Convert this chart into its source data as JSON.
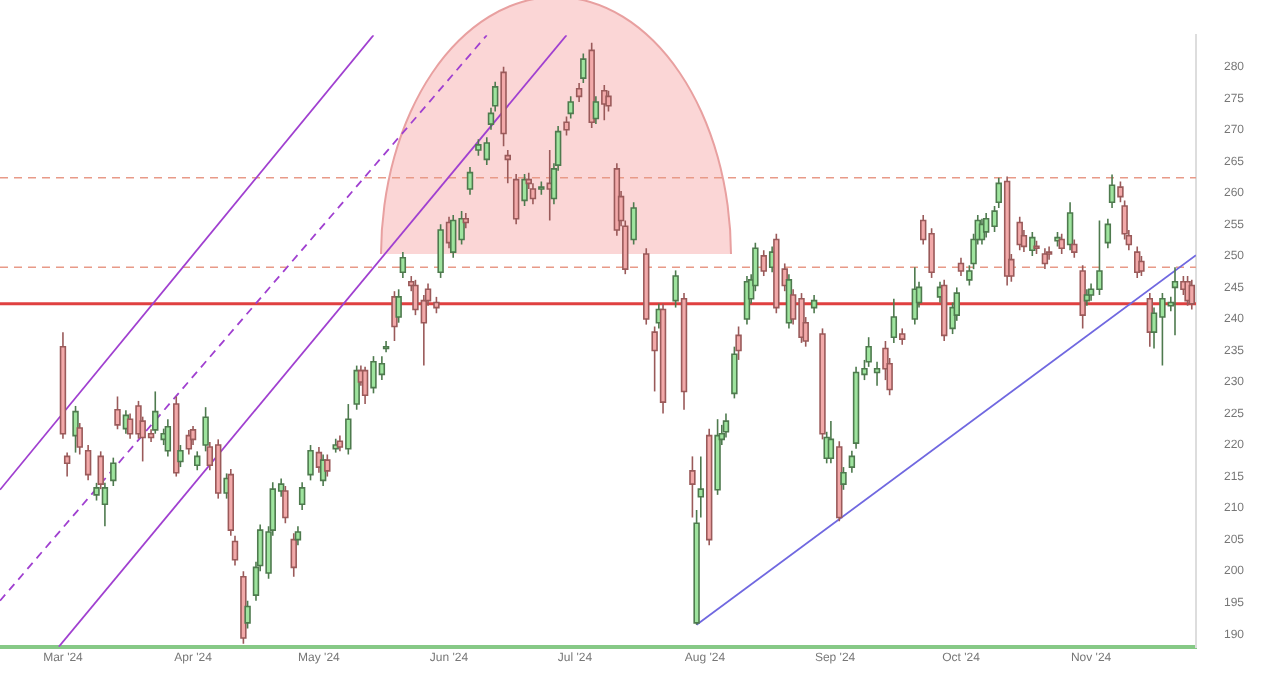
{
  "chart_data": {
    "type": "candlestick",
    "x": [
      "2024-03-01",
      "2024-03-02",
      "2024-03-04",
      "2024-03-05",
      "2024-03-07",
      "2024-03-09",
      "2024-03-10",
      "2024-03-11",
      "2024-03-13",
      "2024-03-14",
      "2024-03-16",
      "2024-03-17",
      "2024-03-19",
      "2024-03-20",
      "2024-03-22",
      "2024-03-23",
      "2024-03-25",
      "2024-03-26",
      "2024-03-28",
      "2024-03-29",
      "2024-03-31",
      "2024-04-01",
      "2024-04-02",
      "2024-04-04",
      "2024-04-05",
      "2024-04-07",
      "2024-04-09",
      "2024-04-10",
      "2024-04-11",
      "2024-04-13",
      "2024-04-14",
      "2024-04-16",
      "2024-04-17",
      "2024-04-19",
      "2024-04-20",
      "2024-04-22",
      "2024-04-23",
      "2024-04-25",
      "2024-04-26",
      "2024-04-27",
      "2024-04-29",
      "2024-05-01",
      "2024-05-02",
      "2024-05-03",
      "2024-05-05",
      "2024-05-06",
      "2024-05-08",
      "2024-05-10",
      "2024-05-11",
      "2024-05-12",
      "2024-05-14",
      "2024-05-16",
      "2024-05-17",
      "2024-05-19",
      "2024-05-20",
      "2024-05-21",
      "2024-05-23",
      "2024-05-24",
      "2024-05-26",
      "2024-05-27",
      "2024-05-29",
      "2024-05-30",
      "2024-06-01",
      "2024-06-02",
      "2024-06-04",
      "2024-06-05",
      "2024-06-06",
      "2024-06-08",
      "2024-06-10",
      "2024-06-11",
      "2024-06-12",
      "2024-06-14",
      "2024-06-15",
      "2024-06-17",
      "2024-06-19",
      "2024-06-20",
      "2024-06-21",
      "2024-06-23",
      "2024-06-25",
      "2024-06-26",
      "2024-06-27",
      "2024-06-29",
      "2024-06-30",
      "2024-07-02",
      "2024-07-03",
      "2024-07-05",
      "2024-07-06",
      "2024-07-08",
      "2024-07-09",
      "2024-07-11",
      "2024-07-12",
      "2024-07-13",
      "2024-07-15",
      "2024-07-18",
      "2024-07-20",
      "2024-07-21",
      "2024-07-22",
      "2024-07-25",
      "2024-07-27",
      "2024-07-29",
      "2024-07-30",
      "2024-07-31",
      "2024-08-02",
      "2024-08-04",
      "2024-08-05",
      "2024-08-06",
      "2024-08-08",
      "2024-08-09",
      "2024-08-11",
      "2024-08-12",
      "2024-08-13",
      "2024-08-15",
      "2024-08-17",
      "2024-08-18",
      "2024-08-20",
      "2024-08-21",
      "2024-08-22",
      "2024-08-24",
      "2024-08-25",
      "2024-08-27",
      "2024-08-29",
      "2024-08-30",
      "2024-08-31",
      "2024-09-02",
      "2024-09-03",
      "2024-09-05",
      "2024-09-06",
      "2024-09-08",
      "2024-09-09",
      "2024-09-11",
      "2024-09-13",
      "2024-09-14",
      "2024-09-15",
      "2024-09-17",
      "2024-09-20",
      "2024-09-21",
      "2024-09-22",
      "2024-09-24",
      "2024-09-26",
      "2024-09-27",
      "2024-09-29",
      "2024-09-30",
      "2024-10-01",
      "2024-10-03",
      "2024-10-04",
      "2024-10-05",
      "2024-10-06",
      "2024-10-07",
      "2024-10-09",
      "2024-10-10",
      "2024-10-12",
      "2024-10-13",
      "2024-10-15",
      "2024-10-16",
      "2024-10-18",
      "2024-10-19",
      "2024-10-21",
      "2024-10-22",
      "2024-10-24",
      "2024-10-25",
      "2024-10-27",
      "2024-10-28",
      "2024-10-30",
      "2024-10-31",
      "2024-11-01",
      "2024-11-03",
      "2024-11-05",
      "2024-11-06",
      "2024-11-08",
      "2024-11-09",
      "2024-11-10",
      "2024-11-12",
      "2024-11-13",
      "2024-11-15",
      "2024-11-16",
      "2024-11-18",
      "2024-11-20",
      "2024-11-21",
      "2024-11-23",
      "2024-11-24",
      "2024-11-25"
    ],
    "ohlc": [
      [
        235.6,
        237.9,
        221.0,
        221.8
      ],
      [
        218.2,
        218.8,
        215.0,
        217.1
      ],
      [
        221.5,
        226.2,
        218.8,
        225.3
      ],
      [
        222.7,
        223.5,
        218.5,
        219.7
      ],
      [
        219.1,
        220.0,
        214.4,
        215.3
      ],
      [
        212.1,
        214.0,
        211.2,
        213.2
      ],
      [
        218.2,
        219.0,
        213.0,
        213.8
      ],
      [
        210.6,
        214.0,
        207.1,
        213.2
      ],
      [
        214.4,
        218.0,
        213.5,
        217.1
      ],
      [
        225.6,
        227.7,
        222.5,
        223.2
      ],
      [
        222.6,
        225.5,
        221.8,
        224.7
      ],
      [
        224.1,
        225.0,
        221.0,
        221.8
      ],
      [
        226.2,
        227.0,
        221.0,
        221.8
      ],
      [
        223.8,
        224.5,
        217.4,
        221.2
      ],
      [
        221.8,
        222.5,
        220.5,
        221.2
      ],
      [
        222.4,
        228.5,
        221.8,
        225.3
      ],
      [
        220.9,
        222.6,
        220.0,
        221.8
      ],
      [
        219.1,
        224.1,
        218.2,
        222.9
      ],
      [
        226.5,
        227.7,
        215.0,
        215.6
      ],
      [
        217.4,
        220.0,
        216.5,
        219.1
      ],
      [
        221.5,
        222.4,
        218.5,
        219.4
      ],
      [
        222.4,
        223.0,
        220.0,
        220.9
      ],
      [
        216.8,
        219.0,
        216.0,
        218.2
      ],
      [
        220.0,
        226.0,
        219.0,
        224.4
      ],
      [
        219.7,
        220.5,
        216.0,
        216.8
      ],
      [
        220.0,
        220.9,
        211.5,
        212.4
      ],
      [
        212.4,
        215.5,
        211.5,
        214.7
      ],
      [
        215.3,
        216.2,
        205.6,
        206.5
      ],
      [
        204.7,
        205.6,
        200.9,
        201.8
      ],
      [
        199.1,
        200.0,
        188.5,
        189.4
      ],
      [
        191.8,
        195.3,
        190.9,
        194.4
      ],
      [
        196.2,
        201.5,
        195.3,
        200.6
      ],
      [
        200.9,
        207.4,
        200.0,
        206.5
      ],
      [
        199.7,
        207.1,
        198.8,
        206.2
      ],
      [
        206.5,
        214.1,
        205.6,
        213.0
      ],
      [
        212.7,
        214.7,
        211.8,
        213.8
      ],
      [
        212.7,
        213.5,
        207.6,
        208.5
      ],
      [
        205.0,
        206.0,
        199.1,
        200.6
      ],
      [
        205.0,
        207.1,
        204.1,
        206.2
      ],
      [
        210.6,
        214.1,
        209.7,
        213.2
      ],
      [
        215.3,
        220.0,
        214.4,
        219.1
      ],
      [
        218.8,
        219.7,
        215.6,
        216.5
      ],
      [
        214.4,
        218.5,
        213.5,
        217.6
      ],
      [
        217.6,
        218.5,
        215.0,
        215.9
      ],
      [
        219.4,
        221.0,
        218.8,
        220.0
      ],
      [
        220.6,
        221.5,
        219.0,
        219.7
      ],
      [
        219.4,
        226.5,
        218.5,
        224.1
      ],
      [
        226.5,
        232.6,
        225.6,
        231.8
      ],
      [
        231.8,
        232.6,
        229.4,
        230.0
      ],
      [
        231.8,
        232.4,
        226.5,
        227.9
      ],
      [
        229.1,
        234.1,
        228.2,
        233.2
      ],
      [
        231.2,
        234.1,
        230.3,
        232.9
      ],
      [
        235.3,
        236.5,
        234.7,
        235.6
      ],
      [
        243.5,
        244.4,
        236.5,
        238.8
      ],
      [
        240.3,
        244.7,
        239.4,
        243.5
      ],
      [
        247.4,
        250.6,
        246.5,
        249.7
      ],
      [
        245.9,
        246.8,
        244.4,
        245.3
      ],
      [
        245.3,
        246.2,
        240.6,
        241.5
      ],
      [
        242.9,
        243.8,
        232.6,
        239.4
      ],
      [
        244.7,
        245.6,
        242.1,
        242.9
      ],
      [
        242.6,
        243.5,
        240.9,
        241.8
      ],
      [
        247.4,
        255.0,
        246.5,
        254.1
      ],
      [
        255.3,
        256.2,
        251.2,
        252.1
      ],
      [
        250.6,
        256.5,
        249.7,
        255.6
      ],
      [
        252.6,
        257.1,
        251.8,
        255.9
      ],
      [
        255.9,
        256.8,
        254.4,
        255.3
      ],
      [
        260.6,
        264.1,
        259.7,
        263.2
      ],
      [
        266.8,
        268.5,
        265.9,
        267.6
      ],
      [
        265.3,
        268.8,
        264.4,
        267.9
      ],
      [
        270.9,
        273.5,
        270.0,
        272.6
      ],
      [
        273.8,
        277.6,
        272.9,
        276.8
      ],
      [
        279.1,
        280.0,
        267.4,
        269.4
      ],
      [
        265.9,
        266.8,
        261.5,
        265.3
      ],
      [
        262.1,
        263.0,
        255.0,
        255.9
      ],
      [
        258.8,
        263.0,
        257.9,
        262.1
      ],
      [
        262.1,
        263.2,
        260.6,
        261.5
      ],
      [
        260.6,
        261.5,
        258.2,
        259.1
      ],
      [
        260.6,
        261.8,
        259.7,
        260.9
      ],
      [
        261.5,
        266.8,
        255.6,
        260.6
      ],
      [
        259.1,
        264.7,
        258.2,
        263.8
      ],
      [
        264.4,
        270.6,
        263.5,
        269.7
      ],
      [
        271.2,
        272.1,
        269.1,
        270.0
      ],
      [
        272.6,
        275.3,
        271.8,
        274.4
      ],
      [
        276.5,
        277.4,
        274.4,
        275.3
      ],
      [
        278.2,
        282.1,
        277.4,
        281.2
      ],
      [
        282.6,
        283.8,
        270.3,
        271.2
      ],
      [
        271.8,
        275.3,
        270.9,
        274.4
      ],
      [
        276.2,
        277.1,
        271.5,
        274.1
      ],
      [
        275.3,
        276.2,
        272.9,
        273.8
      ],
      [
        263.8,
        264.7,
        253.2,
        254.1
      ],
      [
        259.4,
        260.3,
        254.7,
        255.6
      ],
      [
        254.7,
        255.6,
        247.1,
        247.9
      ],
      [
        252.6,
        258.5,
        251.8,
        257.6
      ],
      [
        250.3,
        251.2,
        239.1,
        240.0
      ],
      [
        237.9,
        238.8,
        228.5,
        235.0
      ],
      [
        239.4,
        242.4,
        238.5,
        241.5
      ],
      [
        241.5,
        242.4,
        225.0,
        226.8
      ],
      [
        242.9,
        247.7,
        241.8,
        246.8
      ],
      [
        243.2,
        244.1,
        225.6,
        228.5
      ],
      [
        215.9,
        218.2,
        208.5,
        213.8
      ],
      [
        191.8,
        209.7,
        191.5,
        207.6
      ],
      [
        211.8,
        218.2,
        208.5,
        213.0
      ],
      [
        221.5,
        222.6,
        204.1,
        205.0
      ],
      [
        212.9,
        224.1,
        212.1,
        221.5
      ],
      [
        220.9,
        223.2,
        220.0,
        221.8
      ],
      [
        222.1,
        225.0,
        221.2,
        223.8
      ],
      [
        228.2,
        235.6,
        227.4,
        234.4
      ],
      [
        237.4,
        238.8,
        233.5,
        235.0
      ],
      [
        240.0,
        246.8,
        239.1,
        245.9
      ],
      [
        243.2,
        247.1,
        242.4,
        246.2
      ],
      [
        245.3,
        252.1,
        244.4,
        251.2
      ],
      [
        250.0,
        250.9,
        246.8,
        247.6
      ],
      [
        248.2,
        251.5,
        247.4,
        250.6
      ],
      [
        252.6,
        253.5,
        240.9,
        241.8
      ],
      [
        247.9,
        248.8,
        244.4,
        245.3
      ],
      [
        239.4,
        247.1,
        238.5,
        246.2
      ],
      [
        243.8,
        244.7,
        239.1,
        240.0
      ],
      [
        243.2,
        244.1,
        236.2,
        237.1
      ],
      [
        239.4,
        240.3,
        235.6,
        236.5
      ],
      [
        241.8,
        243.8,
        240.9,
        242.9
      ],
      [
        237.6,
        238.5,
        220.9,
        221.8
      ],
      [
        217.9,
        222.1,
        217.1,
        221.2
      ],
      [
        217.9,
        223.8,
        217.1,
        220.9
      ],
      [
        219.7,
        220.6,
        207.9,
        208.5
      ],
      [
        213.8,
        216.5,
        212.9,
        215.6
      ],
      [
        216.5,
        219.1,
        215.6,
        218.2
      ],
      [
        220.3,
        232.4,
        219.4,
        231.5
      ],
      [
        231.2,
        233.5,
        230.3,
        232.1
      ],
      [
        233.2,
        237.1,
        232.4,
        235.6
      ],
      [
        231.5,
        233.2,
        229.4,
        232.1
      ],
      [
        235.3,
        236.5,
        230.3,
        232.1
      ],
      [
        232.9,
        233.8,
        227.9,
        228.8
      ],
      [
        237.1,
        243.2,
        236.2,
        240.3
      ],
      [
        237.6,
        238.5,
        235.9,
        236.8
      ],
      [
        240.0,
        248.2,
        239.1,
        244.7
      ],
      [
        242.6,
        245.9,
        241.8,
        245.0
      ],
      [
        255.6,
        256.5,
        251.8,
        252.6
      ],
      [
        253.5,
        254.4,
        246.5,
        247.4
      ],
      [
        243.5,
        245.9,
        242.6,
        245.0
      ],
      [
        245.3,
        246.2,
        236.5,
        237.4
      ],
      [
        238.5,
        242.6,
        237.6,
        241.8
      ],
      [
        240.6,
        245.0,
        239.7,
        244.1
      ],
      [
        248.8,
        249.7,
        246.8,
        247.6
      ],
      [
        246.2,
        248.5,
        245.3,
        247.6
      ],
      [
        248.8,
        253.5,
        247.9,
        252.6
      ],
      [
        252.6,
        256.5,
        251.8,
        255.6
      ],
      [
        252.6,
        255.9,
        251.8,
        255.0
      ],
      [
        253.8,
        256.8,
        252.9,
        255.9
      ],
      [
        254.7,
        257.9,
        253.8,
        257.1
      ],
      [
        258.5,
        262.4,
        257.6,
        261.5
      ],
      [
        261.8,
        262.6,
        245.3,
        246.8
      ],
      [
        249.4,
        250.3,
        245.9,
        246.8
      ],
      [
        255.3,
        256.2,
        250.9,
        251.8
      ],
      [
        253.2,
        254.1,
        250.6,
        251.5
      ],
      [
        250.9,
        253.8,
        250.0,
        252.9
      ],
      [
        251.5,
        252.4,
        250.3,
        251.2
      ],
      [
        250.3,
        251.2,
        247.9,
        248.8
      ],
      [
        250.6,
        251.5,
        249.4,
        250.3
      ],
      [
        252.4,
        253.8,
        251.5,
        252.9
      ],
      [
        252.6,
        253.5,
        250.3,
        251.2
      ],
      [
        251.8,
        258.5,
        250.9,
        256.8
      ],
      [
        251.8,
        252.6,
        249.7,
        250.6
      ],
      [
        247.6,
        248.5,
        238.5,
        240.6
      ],
      [
        242.9,
        244.7,
        242.1,
        243.8
      ],
      [
        243.8,
        245.6,
        242.9,
        244.7
      ],
      [
        244.7,
        255.6,
        243.8,
        247.6
      ],
      [
        252.1,
        255.9,
        251.2,
        255.0
      ],
      [
        258.5,
        262.9,
        257.6,
        261.2
      ],
      [
        260.9,
        261.8,
        258.5,
        259.4
      ],
      [
        257.9,
        258.8,
        252.6,
        253.5
      ],
      [
        253.2,
        254.1,
        250.9,
        251.8
      ],
      [
        250.6,
        251.5,
        246.5,
        247.4
      ],
      [
        249.1,
        250.0,
        246.8,
        247.6
      ],
      [
        243.2,
        244.1,
        235.6,
        237.9
      ],
      [
        237.9,
        241.8,
        235.3,
        240.9
      ],
      [
        240.3,
        244.1,
        232.6,
        243.2
      ],
      [
        242.1,
        243.5,
        241.2,
        242.6
      ],
      [
        245.0,
        248.2,
        237.4,
        245.9
      ],
      [
        245.9,
        246.8,
        243.8,
        244.7
      ],
      [
        245.9,
        246.8,
        242.1,
        242.9
      ],
      [
        245.3,
        246.2,
        241.5,
        242.4
      ]
    ],
    "series": [
      {
        "type": "line",
        "color": "#a040d0",
        "line_style": "solid",
        "x": [
          "2024-02-15",
          "2024-05-14"
        ],
        "values": [
          212.9,
          285
        ]
      },
      {
        "type": "line",
        "color": "#a040d0",
        "line_style": "dashed",
        "x": [
          "2024-02-15",
          "2024-06-10"
        ],
        "values": [
          195.3,
          285
        ]
      },
      {
        "type": "line",
        "color": "#a040d0",
        "line_style": "solid",
        "x": [
          "2024-02-29",
          "2024-06-29"
        ],
        "values": [
          188.0,
          285
        ]
      },
      {
        "type": "line",
        "color": "#7068e0",
        "line_style": "solid",
        "x": [
          "2024-07-30",
          "2024-11-26"
        ],
        "values": [
          191.5,
          250.1
        ]
      }
    ],
    "ref_lines": [
      {
        "axis": "y",
        "value": 262.4,
        "color": "#e89a88",
        "line_style": "dashed"
      },
      {
        "axis": "y",
        "value": 248.2,
        "color": "#e89a88",
        "line_style": "dashed"
      },
      {
        "axis": "y",
        "value": 242.4,
        "color": "#e04040",
        "line_style": "solid"
      }
    ],
    "xlim": [
      "2024-02-15",
      "2024-11-26"
    ],
    "xticks": [
      {
        "value": "2024-03-01",
        "label": "Mar '24"
      },
      {
        "value": "2024-04-01",
        "label": "Apr '24"
      },
      {
        "value": "2024-05-01",
        "label": "May '24"
      },
      {
        "value": "2024-06-01",
        "label": "Jun '24"
      },
      {
        "value": "2024-07-01",
        "label": "Jul '24"
      },
      {
        "value": "2024-08-01",
        "label": "Aug '24"
      },
      {
        "value": "2024-09-01",
        "label": "Sep '24"
      },
      {
        "value": "2024-10-01",
        "label": "Oct '24"
      },
      {
        "value": "2024-11-01",
        "label": "Nov '24"
      }
    ],
    "ylim": [
      188,
      285
    ],
    "yticks": [
      190,
      195,
      200,
      205,
      210,
      215,
      220,
      225,
      230,
      235,
      240,
      245,
      250,
      255,
      260,
      265,
      270,
      275,
      280
    ],
    "grid": false,
    "legend": false
  }
}
